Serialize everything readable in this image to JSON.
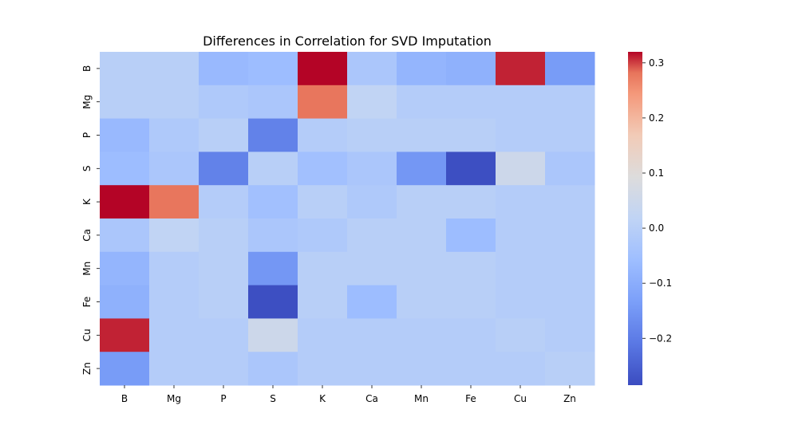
{
  "chart_data": {
    "type": "heatmap",
    "title": "Differences in Correlation for SVD Imputation",
    "xlabel": "",
    "ylabel": "",
    "x_categories": [
      "B",
      "Mg",
      "P",
      "S",
      "K",
      "Ca",
      "Mn",
      "Fe",
      "Cu",
      "Zn"
    ],
    "y_categories": [
      "B",
      "Mg",
      "P",
      "S",
      "K",
      "Ca",
      "Mn",
      "Fe",
      "Cu",
      "Zn"
    ],
    "values": [
      [
        0.0,
        0.0,
        -0.07,
        -0.06,
        0.32,
        -0.03,
        -0.08,
        -0.09,
        0.31,
        -0.14
      ],
      [
        0.0,
        0.0,
        -0.02,
        -0.03,
        0.28,
        0.02,
        -0.01,
        -0.01,
        -0.01,
        -0.01
      ],
      [
        -0.07,
        -0.02,
        0.0,
        -0.19,
        -0.01,
        0.0,
        0.0,
        0.0,
        -0.01,
        -0.01
      ],
      [
        -0.06,
        -0.03,
        -0.19,
        0.0,
        -0.05,
        -0.03,
        -0.15,
        -0.28,
        0.05,
        -0.03
      ],
      [
        0.32,
        0.28,
        -0.01,
        -0.05,
        0.0,
        -0.02,
        0.0,
        0.0,
        -0.01,
        -0.01
      ],
      [
        -0.03,
        0.02,
        0.0,
        -0.03,
        -0.02,
        0.0,
        0.0,
        -0.06,
        -0.01,
        -0.01
      ],
      [
        -0.08,
        -0.01,
        0.0,
        -0.15,
        0.0,
        0.0,
        0.0,
        0.0,
        -0.01,
        -0.01
      ],
      [
        -0.09,
        -0.01,
        0.0,
        -0.28,
        0.0,
        -0.06,
        0.0,
        0.0,
        -0.01,
        -0.01
      ],
      [
        0.31,
        -0.01,
        -0.01,
        0.05,
        -0.01,
        -0.01,
        -0.01,
        -0.01,
        0.0,
        -0.01
      ],
      [
        -0.14,
        -0.01,
        -0.01,
        -0.03,
        -0.01,
        -0.01,
        -0.01,
        -0.01,
        -0.01,
        0.0
      ]
    ],
    "colormap": "coolwarm",
    "vmin": -0.285,
    "vmax": 0.32,
    "colorbar_ticks": [
      0.3,
      0.2,
      0.1,
      0.0,
      -0.1,
      -0.2
    ],
    "colorbar_tick_labels": [
      "0.3",
      "0.2",
      "0.1",
      "0.0",
      "−0.1",
      "−0.2"
    ]
  }
}
